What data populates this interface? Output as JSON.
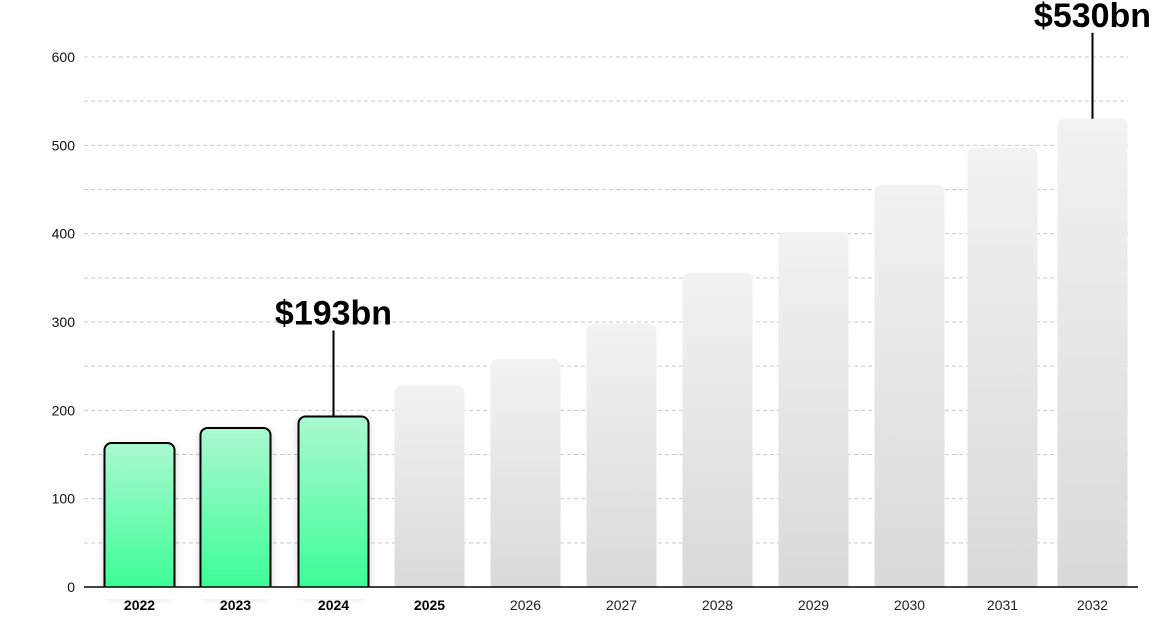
{
  "chart_data": {
    "type": "bar",
    "categories": [
      "2022",
      "2023",
      "2024",
      "2025",
      "2026",
      "2027",
      "2028",
      "2029",
      "2030",
      "2031",
      "2032"
    ],
    "values": [
      163,
      180,
      193,
      228,
      258,
      298,
      356,
      402,
      455,
      497,
      530
    ],
    "actual_count": 3,
    "bold_categories": [
      "2022",
      "2023",
      "2024",
      "2025"
    ],
    "ylim": [
      0,
      600
    ],
    "yticks": [
      0,
      100,
      200,
      300,
      400,
      500,
      600
    ],
    "grid": true,
    "title": "",
    "xlabel": "",
    "ylabel": "",
    "annotations": [
      {
        "category": "2024",
        "text": "$193bn"
      },
      {
        "category": "2032",
        "text": "$530bn"
      }
    ],
    "colors": {
      "actual_top": "#aaf9d0",
      "actual_bottom": "#38fd95",
      "forecast_top": "#f2f2f2",
      "forecast_bottom": "#d9d9d9",
      "grid": "#c9c9c9",
      "axis": "#000000"
    }
  }
}
